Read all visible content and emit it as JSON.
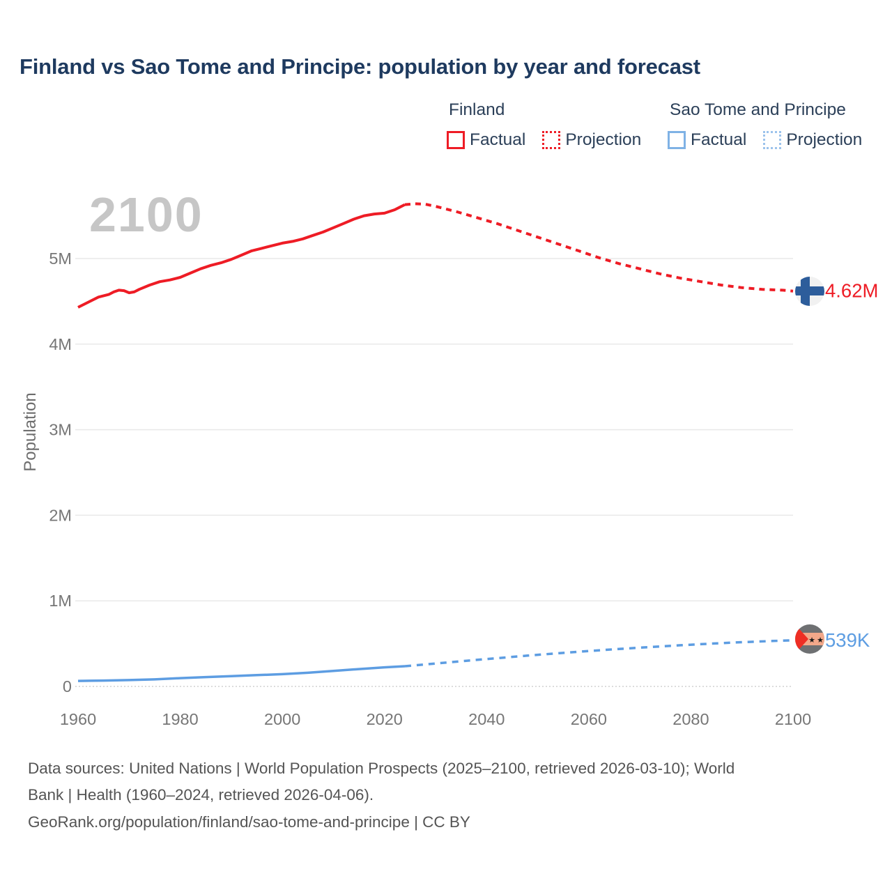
{
  "chart_data": {
    "type": "line",
    "title": "Finland vs Sao Tome and Principe: population by year and forecast",
    "watermark": "2100",
    "xlabel": "",
    "ylabel": "Population",
    "y_unit": "millions of people",
    "xlim": [
      1960,
      2100
    ],
    "ylim_millions": [
      0,
      5.9
    ],
    "grid": "horizontal",
    "legend_position": "top-right",
    "x_ticks": [
      1960,
      1980,
      2000,
      2020,
      2040,
      2060,
      2080,
      2100
    ],
    "y_ticks": [
      {
        "m": 0,
        "label": "0"
      },
      {
        "m": 1,
        "label": "1M"
      },
      {
        "m": 2,
        "label": "2M"
      },
      {
        "m": 3,
        "label": "3M"
      },
      {
        "m": 4,
        "label": "4M"
      },
      {
        "m": 5,
        "label": "5M"
      }
    ],
    "series": [
      {
        "id": "finland-factual",
        "name": "Finland Factual",
        "color": "#ee1c25",
        "width": 4,
        "dash": null,
        "points": [
          [
            1960,
            4.43
          ],
          [
            1962,
            4.49
          ],
          [
            1964,
            4.55
          ],
          [
            1966,
            4.58
          ],
          [
            1967,
            4.61
          ],
          [
            1968,
            4.63
          ],
          [
            1969,
            4.625
          ],
          [
            1970,
            4.6
          ],
          [
            1971,
            4.61
          ],
          [
            1972,
            4.64
          ],
          [
            1974,
            4.69
          ],
          [
            1976,
            4.73
          ],
          [
            1978,
            4.75
          ],
          [
            1980,
            4.78
          ],
          [
            1982,
            4.83
          ],
          [
            1984,
            4.88
          ],
          [
            1986,
            4.92
          ],
          [
            1988,
            4.95
          ],
          [
            1990,
            4.99
          ],
          [
            1992,
            5.04
          ],
          [
            1994,
            5.09
          ],
          [
            1996,
            5.12
          ],
          [
            1998,
            5.15
          ],
          [
            2000,
            5.18
          ],
          [
            2002,
            5.2
          ],
          [
            2004,
            5.23
          ],
          [
            2006,
            5.27
          ],
          [
            2008,
            5.31
          ],
          [
            2010,
            5.36
          ],
          [
            2012,
            5.41
          ],
          [
            2014,
            5.46
          ],
          [
            2016,
            5.5
          ],
          [
            2018,
            5.52
          ],
          [
            2020,
            5.53
          ],
          [
            2022,
            5.57
          ],
          [
            2023,
            5.6
          ],
          [
            2024,
            5.63
          ]
        ]
      },
      {
        "id": "finland-projection",
        "name": "Finland Projection",
        "color": "#ee1c25",
        "width": 4,
        "dash": "8 7",
        "points": [
          [
            2024,
            5.63
          ],
          [
            2026,
            5.64
          ],
          [
            2028,
            5.635
          ],
          [
            2030,
            5.61
          ],
          [
            2034,
            5.55
          ],
          [
            2038,
            5.48
          ],
          [
            2042,
            5.41
          ],
          [
            2046,
            5.33
          ],
          [
            2050,
            5.25
          ],
          [
            2054,
            5.17
          ],
          [
            2058,
            5.09
          ],
          [
            2062,
            5.01
          ],
          [
            2066,
            4.94
          ],
          [
            2070,
            4.88
          ],
          [
            2074,
            4.82
          ],
          [
            2078,
            4.77
          ],
          [
            2082,
            4.73
          ],
          [
            2086,
            4.69
          ],
          [
            2090,
            4.66
          ],
          [
            2094,
            4.64
          ],
          [
            2098,
            4.63
          ],
          [
            2100,
            4.62
          ]
        ]
      },
      {
        "id": "sao-tome-factual",
        "name": "Sao Tome and Principe Factual",
        "color": "#5d9de2",
        "width": 3.5,
        "dash": null,
        "points": [
          [
            1960,
            0.064
          ],
          [
            1965,
            0.068
          ],
          [
            1970,
            0.074
          ],
          [
            1975,
            0.082
          ],
          [
            1980,
            0.097
          ],
          [
            1985,
            0.109
          ],
          [
            1990,
            0.12
          ],
          [
            1995,
            0.132
          ],
          [
            2000,
            0.143
          ],
          [
            2005,
            0.16
          ],
          [
            2010,
            0.182
          ],
          [
            2015,
            0.203
          ],
          [
            2020,
            0.223
          ],
          [
            2024,
            0.236
          ]
        ]
      },
      {
        "id": "sao-tome-projection",
        "name": "Sao Tome and Principe Projection",
        "color": "#5d9de2",
        "width": 3.5,
        "dash": "9 8",
        "points": [
          [
            2024,
            0.236
          ],
          [
            2030,
            0.268
          ],
          [
            2036,
            0.3
          ],
          [
            2042,
            0.33
          ],
          [
            2048,
            0.36
          ],
          [
            2054,
            0.388
          ],
          [
            2060,
            0.414
          ],
          [
            2066,
            0.438
          ],
          [
            2072,
            0.46
          ],
          [
            2078,
            0.481
          ],
          [
            2084,
            0.5
          ],
          [
            2090,
            0.517
          ],
          [
            2096,
            0.531
          ],
          [
            2100,
            0.539
          ]
        ]
      }
    ],
    "end_labels": [
      {
        "name": "finland",
        "text": "4.62M",
        "value": 4.62,
        "color": "#ee1c25",
        "flag": "finland-flag-icon"
      },
      {
        "name": "sao-tome",
        "text": "539K",
        "value": 0.539,
        "color": "#5d9de2",
        "flag": "sao-tome-flag-icon"
      }
    ]
  },
  "legend": {
    "finland": {
      "title": "Finland",
      "factual": "Factual",
      "projection": "Projection",
      "color": "#ee1c25"
    },
    "sao_tome": {
      "title": "Sao Tome and Principe",
      "factual": "Factual",
      "projection": "Projection",
      "color": "#7fb2e5"
    }
  },
  "footer": {
    "sources_line1": "Data sources: United Nations | World Population Prospects (2025–2100, retrieved 2026-03-10); World",
    "sources_line2": "Bank | Health (1960–2024, retrieved 2026-04-06).",
    "sources_line3": "GeoRank.org/population/finland/sao-tome-and-principe | CC BY"
  },
  "colors": {
    "title_text": "#1e3a5f",
    "legend_text": "#2b3f58",
    "finland_line": "#ee1c25",
    "sao_tome_line": "#5d9de2",
    "axis_text": "#767676",
    "gridline": "#e9e9e9",
    "watermark": "#c6c6c6",
    "source_text": "#545454"
  }
}
